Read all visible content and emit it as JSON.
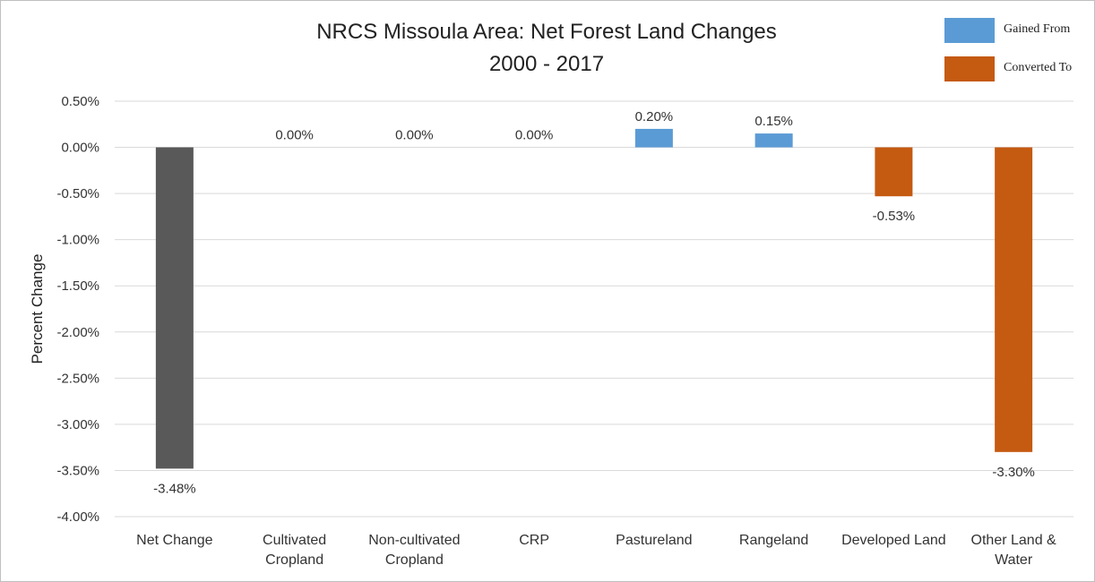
{
  "chart_data": {
    "type": "bar",
    "title": "NRCS Missoula Area: Net Forest Land Changes",
    "subtitle": "2000 - 2017",
    "ylabel": "Percent Change",
    "xlabel": "",
    "ylim": [
      -4.0,
      0.5
    ],
    "yticks": [
      "0.50%",
      "0.00%",
      "-0.50%",
      "-1.00%",
      "-1.50%",
      "-2.00%",
      "-2.50%",
      "-3.00%",
      "-3.50%",
      "-4.00%"
    ],
    "grid": true,
    "legend_position": "top-right",
    "legend": [
      {
        "label": "Gained From",
        "color": "#5b9bd5"
      },
      {
        "label": "Converted To",
        "color": "#c55a11"
      }
    ],
    "categories": [
      [
        "Net Change"
      ],
      [
        "Cultivated",
        "Cropland"
      ],
      [
        "Non-cultivated",
        "Cropland"
      ],
      [
        "CRP"
      ],
      [
        "Pastureland"
      ],
      [
        "Rangeland"
      ],
      [
        "Developed Land"
      ],
      [
        "Other Land &",
        "Water"
      ]
    ],
    "values": [
      -3.48,
      0.0,
      0.0,
      0.0,
      0.2,
      0.15,
      -0.53,
      -3.3
    ],
    "data_labels": [
      "-3.48%",
      "0.00%",
      "0.00%",
      "0.00%",
      "0.20%",
      "0.15%",
      "-0.53%",
      "-3.30%"
    ],
    "bar_colors": [
      "#595959",
      "#5b9bd5",
      "#5b9bd5",
      "#5b9bd5",
      "#5b9bd5",
      "#5b9bd5",
      "#c55a11",
      "#c55a11"
    ]
  }
}
